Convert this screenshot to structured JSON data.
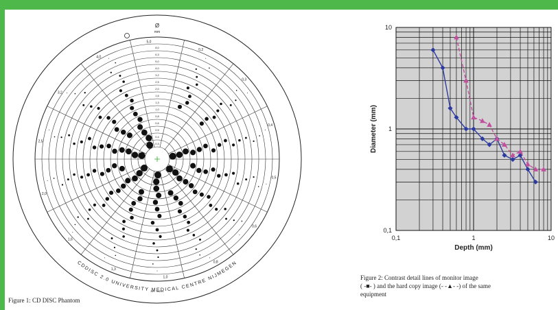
{
  "figure1": {
    "caption": "Figure 1: CD DISC Phantom",
    "column_header": "Ø",
    "column_unit": "mm",
    "diameter_labels": [
      "8,0",
      "6,3",
      "5,0",
      "4,0",
      "3,2",
      "2,5",
      "2,0",
      "1,6",
      "1,3",
      "1,0",
      "0,8",
      "0,6",
      "0,5",
      "0,4",
      "0,3"
    ],
    "thickness_labels": [
      "0,2",
      "0,3",
      "0,4",
      "0,5",
      "0,6",
      "0,8",
      "1,0",
      "1,3",
      "1,6",
      "2,0",
      "2,5",
      "3,2",
      "4,0",
      "5,0"
    ],
    "rim_text": "CDDISC 2.0   UNIVERSITY MEDICAL CENTRE NIJMEGEN",
    "serial": "NR. 96201"
  },
  "figure2": {
    "caption_line1": "Figure 2: Contrast detail lines of monitor image",
    "caption_line2": "( -■- ) and the hard copy image (- -▲- -) of the same",
    "caption_line3": "equipment"
  },
  "chart_data": {
    "type": "line",
    "xlabel": "Depth (mm)",
    "ylabel": "Diameter (mm)",
    "xscale": "log",
    "yscale": "log",
    "xlim": [
      0.1,
      10
    ],
    "ylim": [
      0.1,
      10
    ],
    "xticks": [
      "0,1",
      "1",
      "10"
    ],
    "yticks": [
      "0,1",
      "1",
      "10"
    ],
    "grid": true,
    "series": [
      {
        "marker": "square",
        "line": "solid",
        "color": "#2c3a9e",
        "x": [
          0.3,
          0.4,
          0.5,
          0.6,
          0.8,
          1.0,
          1.3,
          1.6,
          2.0,
          2.5,
          3.2,
          4.0,
          5.0,
          6.3
        ],
        "y": [
          6.0,
          4.0,
          1.6,
          1.3,
          1.0,
          1.0,
          0.8,
          0.7,
          0.8,
          0.55,
          0.5,
          0.55,
          0.4,
          0.3
        ]
      },
      {
        "marker": "triangle",
        "line": "dashed",
        "color": "#c0509e",
        "x": [
          0.6,
          0.8,
          1.0,
          1.3,
          1.6,
          2.0,
          2.5,
          3.2,
          4.0,
          5.0,
          6.3,
          8.0
        ],
        "y": [
          8.0,
          3.0,
          1.3,
          1.2,
          1.1,
          0.8,
          0.7,
          0.55,
          0.6,
          0.45,
          0.4,
          0.4
        ]
      }
    ]
  }
}
